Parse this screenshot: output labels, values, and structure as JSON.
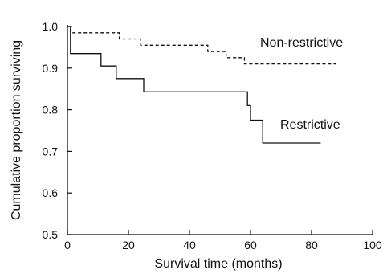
{
  "chart_data": {
    "type": "line",
    "title": "",
    "xlabel": "Survival time (months)",
    "ylabel": "Cumulative proportion surviving",
    "xlim": [
      0,
      100
    ],
    "ylim": [
      0.5,
      1.0
    ],
    "x_ticks": [
      0,
      20,
      40,
      60,
      80,
      100
    ],
    "y_ticks": [
      0.5,
      0.6,
      0.7,
      0.8,
      0.9,
      1.0
    ],
    "x_tick_labels": [
      "0",
      "20",
      "40",
      "60",
      "80",
      "100"
    ],
    "y_tick_labels": [
      "0.5",
      "0.6",
      "0.7",
      "0.8",
      "0.9",
      "1.0"
    ],
    "grid": false,
    "step": true,
    "series": [
      {
        "name": "Non-restrictive",
        "style": "dashed",
        "color": "#111111",
        "points": [
          [
            0,
            1.0
          ],
          [
            1,
            1.0
          ],
          [
            1,
            0.985
          ],
          [
            17,
            0.985
          ],
          [
            17,
            0.97
          ],
          [
            24,
            0.97
          ],
          [
            24,
            0.955
          ],
          [
            46,
            0.955
          ],
          [
            46,
            0.94
          ],
          [
            52,
            0.94
          ],
          [
            52,
            0.925
          ],
          [
            58,
            0.925
          ],
          [
            58,
            0.91
          ],
          [
            88,
            0.91
          ]
        ]
      },
      {
        "name": "Restrictive",
        "style": "solid",
        "color": "#111111",
        "points": [
          [
            0,
            1.0
          ],
          [
            1,
            1.0
          ],
          [
            1,
            0.935
          ],
          [
            11,
            0.935
          ],
          [
            11,
            0.905
          ],
          [
            16,
            0.905
          ],
          [
            16,
            0.875
          ],
          [
            25,
            0.875
          ],
          [
            25,
            0.843
          ],
          [
            59,
            0.843
          ],
          [
            59,
            0.81
          ],
          [
            60,
            0.81
          ],
          [
            60,
            0.775
          ],
          [
            64,
            0.775
          ],
          [
            64,
            0.72
          ],
          [
            83,
            0.72
          ]
        ]
      }
    ]
  }
}
